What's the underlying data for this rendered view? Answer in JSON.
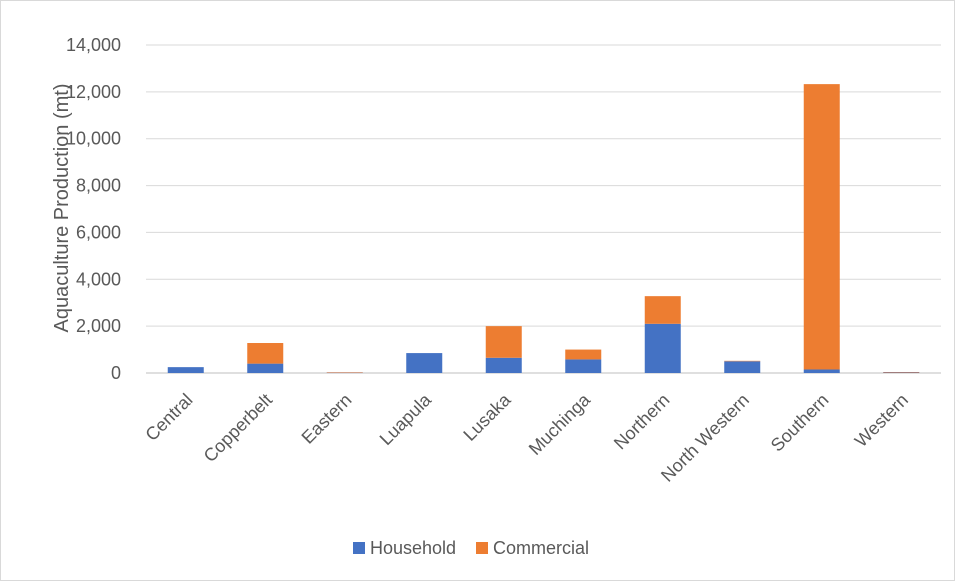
{
  "chart_data": {
    "type": "bar",
    "stacked": true,
    "title": "",
    "xlabel": "",
    "ylabel": "Aquaculture Production (mt)",
    "ylim": [
      0,
      14000
    ],
    "yticks": [
      0,
      2000,
      4000,
      6000,
      8000,
      10000,
      12000,
      14000
    ],
    "ytick_labels": [
      "0",
      "2,000",
      "4,000",
      "6,000",
      "8,000",
      "10,000",
      "12,000",
      "14,000"
    ],
    "grid": true,
    "legend_position": "bottom",
    "categories": [
      "Central",
      "Copperbelt",
      "Eastern",
      "Luapula",
      "Lusaka",
      "Muchinga",
      "Northern",
      "North Western",
      "Southern",
      "Western"
    ],
    "series": [
      {
        "name": "Household",
        "color": "#4472c4",
        "values": [
          250,
          400,
          20,
          850,
          650,
          580,
          2100,
          500,
          150,
          30
        ]
      },
      {
        "name": "Commercial",
        "color": "#ed7d31",
        "values": [
          0,
          880,
          10,
          0,
          1350,
          420,
          1180,
          20,
          12180,
          10
        ]
      }
    ]
  }
}
